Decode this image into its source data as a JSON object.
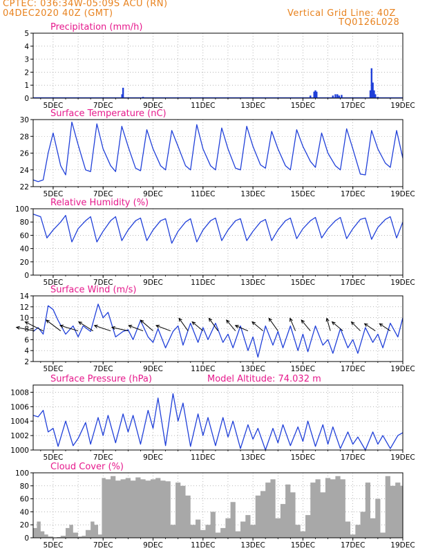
{
  "header": {
    "line1": "CPTEC:  036:34W-05:09S  ACU (RN)",
    "line2": "04DEC2020 40Z (GMT)",
    "right1": "Vertical Grid Line: 40Z",
    "right2": "TQ0126L028"
  },
  "colors": {
    "header": "#e8821e",
    "title": "#e6198c",
    "line": "#1f3fd9",
    "bar": "#a8a8a8",
    "arrow": "#000000"
  },
  "chart_data": [
    {
      "type": "bar",
      "title": "Precipitation (mm/h)",
      "ylim": [
        0,
        5
      ],
      "yticks": [
        "0",
        "1",
        "2",
        "3",
        "4",
        "5"
      ],
      "x_range_days": [
        4.2,
        19.0
      ],
      "xticks": [
        "5DEC",
        "7DEC",
        "9DEC",
        "11DEC",
        "13DEC",
        "15DEC",
        "17DEC",
        "19DEC"
      ],
      "x": [
        7.76,
        7.8,
        8.6,
        10.3,
        15.3,
        15.45,
        15.5,
        15.55,
        16.2,
        16.3,
        16.38,
        16.45,
        16.55,
        17.7,
        17.75,
        17.8,
        17.85,
        17.9,
        18.0
      ],
      "values": [
        0.3,
        0.8,
        0.1,
        0.05,
        0.2,
        0.5,
        0.6,
        0.5,
        0.2,
        0.3,
        0.3,
        0.2,
        0.25,
        0.6,
        2.3,
        1.2,
        0.6,
        0.3,
        0.1
      ]
    },
    {
      "type": "line",
      "title": "Surface Temperature (nC)",
      "ylim": [
        22,
        30
      ],
      "yticks": [
        "22",
        "24",
        "26",
        "28",
        "30"
      ],
      "x_range_days": [
        4.2,
        19.0
      ],
      "xticks": [
        "5DEC",
        "7DEC",
        "9DEC",
        "11DEC",
        "13DEC",
        "15DEC",
        "17DEC",
        "19DEC"
      ],
      "x": [
        4.2,
        4.4,
        4.6,
        4.8,
        5.0,
        5.3,
        5.5,
        5.75,
        6.0,
        6.3,
        6.5,
        6.75,
        7.0,
        7.3,
        7.5,
        7.75,
        8.0,
        8.3,
        8.5,
        8.75,
        9.0,
        9.3,
        9.5,
        9.75,
        10.0,
        10.3,
        10.5,
        10.75,
        11.0,
        11.3,
        11.5,
        11.75,
        12.0,
        12.3,
        12.5,
        12.75,
        13.0,
        13.3,
        13.5,
        13.75,
        14.0,
        14.3,
        14.5,
        14.75,
        15.0,
        15.3,
        15.5,
        15.75,
        16.0,
        16.3,
        16.5,
        16.75,
        17.0,
        17.3,
        17.5,
        17.75,
        18.0,
        18.3,
        18.5,
        18.75,
        19.0
      ],
      "values": [
        22.8,
        22.6,
        22.8,
        26.0,
        28.4,
        24.5,
        23.4,
        29.7,
        27.0,
        24.0,
        23.8,
        29.5,
        26.5,
        24.5,
        23.8,
        29.2,
        26.8,
        24.2,
        23.9,
        28.8,
        26.5,
        24.5,
        24.0,
        28.7,
        26.8,
        24.5,
        24.0,
        29.4,
        26.5,
        24.5,
        24.0,
        29.0,
        26.5,
        24.2,
        24.0,
        29.2,
        26.8,
        24.6,
        24.2,
        28.6,
        26.5,
        24.5,
        24.0,
        28.8,
        26.8,
        25.0,
        24.3,
        28.4,
        26.0,
        24.5,
        24.0,
        28.9,
        26.5,
        23.5,
        23.4,
        28.7,
        26.5,
        24.8,
        24.3,
        28.7,
        25.4
      ]
    },
    {
      "type": "line",
      "title": "Relative Humidity (%)",
      "ylim": [
        0,
        100
      ],
      "yticks": [
        "0",
        "20",
        "40",
        "60",
        "80",
        "100"
      ],
      "x_range_days": [
        4.2,
        19.0
      ],
      "xticks": [
        "5DEC",
        "7DEC",
        "9DEC",
        "11DEC",
        "13DEC",
        "15DEC",
        "17DEC",
        "19DEC"
      ],
      "x": [
        4.2,
        4.5,
        4.75,
        5.0,
        5.3,
        5.5,
        5.75,
        6.0,
        6.3,
        6.5,
        6.75,
        7.0,
        7.3,
        7.5,
        7.75,
        8.0,
        8.3,
        8.5,
        8.75,
        9.0,
        9.3,
        9.5,
        9.75,
        10.0,
        10.3,
        10.5,
        10.75,
        11.0,
        11.3,
        11.5,
        11.75,
        12.0,
        12.3,
        12.5,
        12.75,
        13.0,
        13.3,
        13.5,
        13.75,
        14.0,
        14.3,
        14.5,
        14.75,
        15.0,
        15.3,
        15.5,
        15.75,
        16.0,
        16.3,
        16.5,
        16.75,
        17.0,
        17.3,
        17.5,
        17.75,
        18.0,
        18.3,
        18.5,
        18.75,
        19.0
      ],
      "values": [
        92,
        88,
        56,
        68,
        80,
        90,
        50,
        70,
        82,
        88,
        50,
        66,
        82,
        88,
        52,
        68,
        82,
        86,
        52,
        68,
        82,
        85,
        48,
        66,
        80,
        85,
        50,
        68,
        82,
        86,
        52,
        68,
        82,
        85,
        52,
        66,
        80,
        84,
        52,
        68,
        82,
        86,
        55,
        70,
        82,
        87,
        56,
        70,
        82,
        87,
        55,
        70,
        84,
        86,
        54,
        72,
        84,
        88,
        56,
        80
      ]
    },
    {
      "type": "line",
      "title": "Surface Wind (m/s)",
      "ylim": [
        2,
        14
      ],
      "yticks": [
        "2",
        "4",
        "6",
        "8",
        "10",
        "12",
        "14"
      ],
      "x_range_days": [
        4.2,
        19.0
      ],
      "xticks": [
        "5DEC",
        "7DEC",
        "9DEC",
        "11DEC",
        "13DEC",
        "15DEC",
        "17DEC",
        "19DEC"
      ],
      "x": [
        4.2,
        4.4,
        4.6,
        4.8,
        5.0,
        5.2,
        5.5,
        5.8,
        6.0,
        6.2,
        6.5,
        6.8,
        7.0,
        7.2,
        7.5,
        7.8,
        8.0,
        8.2,
        8.5,
        8.8,
        9.0,
        9.2,
        9.5,
        9.8,
        10.0,
        10.2,
        10.5,
        10.8,
        11.0,
        11.2,
        11.5,
        11.8,
        12.0,
        12.2,
        12.5,
        12.8,
        13.0,
        13.2,
        13.5,
        13.8,
        14.0,
        14.2,
        14.5,
        14.8,
        15.0,
        15.2,
        15.5,
        15.8,
        16.0,
        16.2,
        16.5,
        16.8,
        17.0,
        17.2,
        17.5,
        17.8,
        18.0,
        18.2,
        18.5,
        18.8,
        19.0
      ],
      "values": [
        7.5,
        8.2,
        7.0,
        12.2,
        11.5,
        9.5,
        7.0,
        8.5,
        6.5,
        8.5,
        7.5,
        12.5,
        10.0,
        11.0,
        6.5,
        7.5,
        7.8,
        6.0,
        9.5,
        6.5,
        5.5,
        8.0,
        4.5,
        7.5,
        8.5,
        5.0,
        9.0,
        5.5,
        8.2,
        6.0,
        9.0,
        5.5,
        7.0,
        4.5,
        8.5,
        4.0,
        6.5,
        2.8,
        8.5,
        5.0,
        7.5,
        4.5,
        8.5,
        4.0,
        7.0,
        3.8,
        8.5,
        5.0,
        6.0,
        3.5,
        8.0,
        4.5,
        6.0,
        3.5,
        8.2,
        5.5,
        7.0,
        4.5,
        9.0,
        6.5,
        10.0
      ],
      "vectors": [
        {
          "x": 4.25,
          "u": -1.0,
          "v": 0.2
        },
        {
          "x": 4.6,
          "u": -1.0,
          "v": 0.5
        },
        {
          "x": 5.3,
          "u": -0.8,
          "v": 0.6
        },
        {
          "x": 6.0,
          "u": -1.0,
          "v": 0.3
        },
        {
          "x": 6.6,
          "u": -0.8,
          "v": 0.5
        },
        {
          "x": 7.3,
          "u": -0.9,
          "v": 0.3
        },
        {
          "x": 8.0,
          "u": -0.9,
          "v": 0.2
        },
        {
          "x": 8.6,
          "u": -0.8,
          "v": 0.3
        },
        {
          "x": 9.0,
          "u": -0.7,
          "v": 0.6
        },
        {
          "x": 9.7,
          "u": -0.8,
          "v": 0.3
        },
        {
          "x": 10.4,
          "u": -0.5,
          "v": 0.7
        },
        {
          "x": 11.0,
          "u": -0.6,
          "v": 0.5
        },
        {
          "x": 11.6,
          "u": -0.5,
          "v": 0.7
        },
        {
          "x": 12.3,
          "u": -0.5,
          "v": 0.6
        },
        {
          "x": 12.8,
          "u": -0.7,
          "v": 0.3
        },
        {
          "x": 13.4,
          "u": -0.6,
          "v": 0.5
        },
        {
          "x": 14.0,
          "u": -0.5,
          "v": 0.7
        },
        {
          "x": 14.7,
          "u": -0.3,
          "v": 0.7
        },
        {
          "x": 15.3,
          "u": -0.5,
          "v": 0.6
        },
        {
          "x": 16.1,
          "u": -0.2,
          "v": 0.7
        },
        {
          "x": 16.6,
          "u": -0.6,
          "v": 0.5
        },
        {
          "x": 17.3,
          "u": -0.5,
          "v": 0.5
        },
        {
          "x": 17.9,
          "u": -0.6,
          "v": 0.4
        },
        {
          "x": 18.5,
          "u": -0.6,
          "v": 0.4
        }
      ]
    },
    {
      "type": "line",
      "title": "Surface Pressure (hPa)",
      "annotation": "Model Altitude: 74.032 m",
      "ylim": [
        1000,
        1009
      ],
      "yticks": [
        "1000",
        "1002",
        "1004",
        "1006",
        "1008"
      ],
      "x_range_days": [
        4.2,
        19.0
      ],
      "xticks": [
        "5DEC",
        "7DEC",
        "9DEC",
        "11DEC",
        "13DEC",
        "15DEC",
        "17DEC",
        "19DEC"
      ],
      "x": [
        4.2,
        4.4,
        4.6,
        4.8,
        5.0,
        5.2,
        5.5,
        5.8,
        6.0,
        6.3,
        6.5,
        6.8,
        7.0,
        7.2,
        7.5,
        7.8,
        8.0,
        8.2,
        8.5,
        8.8,
        9.0,
        9.2,
        9.5,
        9.8,
        10.0,
        10.2,
        10.5,
        10.8,
        11.0,
        11.2,
        11.5,
        11.8,
        12.0,
        12.2,
        12.5,
        12.8,
        13.0,
        13.2,
        13.5,
        13.8,
        14.0,
        14.2,
        14.5,
        14.8,
        15.0,
        15.2,
        15.5,
        15.8,
        16.0,
        16.2,
        16.5,
        16.8,
        17.0,
        17.2,
        17.5,
        17.8,
        18.0,
        18.2,
        18.5,
        18.8,
        19.0
      ],
      "values": [
        1004.8,
        1004.6,
        1005.5,
        1002.5,
        1003.0,
        1000.5,
        1004.0,
        1000.6,
        1001.6,
        1003.8,
        1000.8,
        1004.5,
        1002.0,
        1004.8,
        1001.0,
        1005.0,
        1002.5,
        1004.8,
        1000.8,
        1005.5,
        1003.0,
        1007.2,
        1000.6,
        1007.8,
        1004.0,
        1006.5,
        1000.5,
        1005.0,
        1002.0,
        1004.5,
        1000.6,
        1004.5,
        1001.8,
        1004.0,
        1000.2,
        1003.5,
        1001.5,
        1003.0,
        1000.0,
        1003.0,
        1001.0,
        1003.5,
        1000.6,
        1003.2,
        1001.2,
        1004.0,
        1000.5,
        1003.5,
        1000.8,
        1003.2,
        1000.2,
        1002.5,
        1000.8,
        1001.8,
        1000.0,
        1002.5,
        1000.8,
        1002.0,
        1000.2,
        1002.0,
        1002.4
      ]
    },
    {
      "type": "area",
      "title": "Cloud Cover (%)",
      "ylim": [
        0,
        100
      ],
      "yticks": [
        "0",
        "20",
        "40",
        "60",
        "80",
        "100"
      ],
      "x_range_days": [
        4.2,
        19.0
      ],
      "xticks": [
        "5DEC",
        "7DEC",
        "9DEC",
        "11DEC",
        "13DEC",
        "15DEC",
        "17DEC",
        "19DEC"
      ],
      "x": [
        4.2,
        4.35,
        4.5,
        4.65,
        4.8,
        5.0,
        5.15,
        5.3,
        5.5,
        5.65,
        5.8,
        6.0,
        6.15,
        6.3,
        6.5,
        6.65,
        6.8,
        6.95,
        7.1,
        7.3,
        7.5,
        7.7,
        7.9,
        8.1,
        8.3,
        8.5,
        8.7,
        8.9,
        9.1,
        9.3,
        9.5,
        9.7,
        9.9,
        10.1,
        10.3,
        10.5,
        10.7,
        10.9,
        11.1,
        11.3,
        11.5,
        11.7,
        11.9,
        12.1,
        12.3,
        12.5,
        12.7,
        12.9,
        13.1,
        13.3,
        13.5,
        13.7,
        13.9,
        14.1,
        14.3,
        14.5,
        14.7,
        14.9,
        15.1,
        15.3,
        15.5,
        15.7,
        15.9,
        16.1,
        16.3,
        16.5,
        16.7,
        16.9,
        17.1,
        17.3,
        17.5,
        17.7,
        17.9,
        18.1,
        18.3,
        18.5,
        18.7,
        18.9,
        19.0
      ],
      "values": [
        15,
        25,
        10,
        5,
        2,
        0,
        1,
        3,
        15,
        20,
        8,
        2,
        3,
        12,
        25,
        20,
        5,
        92,
        90,
        95,
        88,
        90,
        92,
        88,
        93,
        90,
        88,
        90,
        92,
        88,
        87,
        20,
        85,
        80,
        65,
        20,
        28,
        12,
        20,
        40,
        8,
        15,
        30,
        55,
        10,
        25,
        35,
        20,
        65,
        72,
        85,
        90,
        30,
        52,
        82,
        70,
        20,
        10,
        35,
        85,
        90,
        70,
        92,
        90,
        95,
        90,
        25,
        5,
        20,
        40,
        85,
        30,
        60,
        8,
        95,
        80,
        85,
        80,
        15
      ]
    }
  ]
}
